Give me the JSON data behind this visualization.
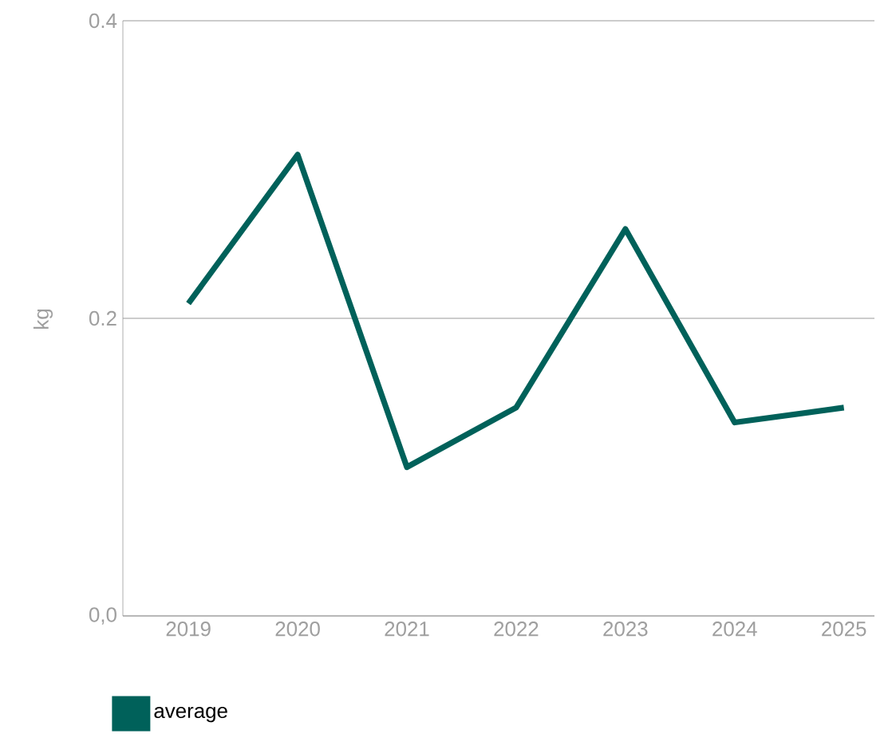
{
  "chart_data": {
    "type": "line",
    "ylabel": "kg",
    "categories": [
      "2019",
      "2020",
      "2021",
      "2022",
      "2023",
      "2024",
      "2025"
    ],
    "series": [
      {
        "name": "average",
        "color": "#00615a",
        "values": [
          0.21,
          0.31,
          0.1,
          0.14,
          0.26,
          0.13,
          0.14
        ]
      }
    ],
    "ylim": [
      0,
      0.4
    ],
    "yticks": [
      {
        "value": 0,
        "label": "0,0"
      },
      0.2,
      0.4
    ],
    "grid": "y",
    "legend": "bottom left",
    "marker": "none",
    "line_style": "solid"
  }
}
